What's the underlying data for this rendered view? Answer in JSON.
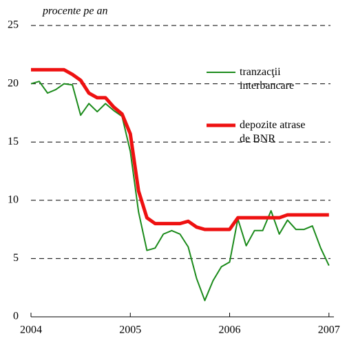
{
  "chart_data": {
    "type": "line",
    "y_axis_label": "procente pe an",
    "x": [
      2004.0,
      2004.083,
      2004.167,
      2004.25,
      2004.333,
      2004.417,
      2004.5,
      2004.583,
      2004.667,
      2004.75,
      2004.833,
      2004.917,
      2005.0,
      2005.083,
      2005.167,
      2005.25,
      2005.333,
      2005.417,
      2005.5,
      2005.583,
      2005.667,
      2005.75,
      2005.833,
      2005.917,
      2006.0,
      2006.083,
      2006.167,
      2006.25,
      2006.333,
      2006.417,
      2006.5,
      2006.583,
      2006.667,
      2006.75,
      2006.833,
      2006.917,
      2007.0
    ],
    "series": [
      {
        "name": "tranzacţii interbancare",
        "color": "#1a8a1a",
        "width": 2,
        "values": [
          20.0,
          20.2,
          19.2,
          19.5,
          20.0,
          19.9,
          17.3,
          18.3,
          17.6,
          18.3,
          17.7,
          17.2,
          14.2,
          9.0,
          5.7,
          5.9,
          7.1,
          7.4,
          7.1,
          6.0,
          3.3,
          1.4,
          3.1,
          4.3,
          4.7,
          8.4,
          6.1,
          7.4,
          7.4,
          9.1,
          7.1,
          8.3,
          7.5,
          7.5,
          7.8,
          5.9,
          4.4
        ]
      },
      {
        "name": "depozite atrase de BNR",
        "color": "#ee1111",
        "width": 5,
        "values": [
          21.2,
          21.2,
          21.2,
          21.2,
          21.2,
          20.8,
          20.3,
          19.2,
          18.8,
          18.8,
          18.0,
          17.4,
          15.7,
          10.8,
          8.5,
          8.0,
          8.0,
          8.0,
          8.0,
          8.2,
          7.7,
          7.5,
          7.5,
          7.5,
          7.5,
          8.5,
          8.5,
          8.5,
          8.5,
          8.5,
          8.5,
          8.75,
          8.75,
          8.75,
          8.75,
          8.75,
          8.75
        ]
      }
    ],
    "xlim": [
      2004,
      2007.05
    ],
    "xticks": [
      2004,
      2005,
      2006,
      2007
    ],
    "ylim": [
      0,
      25
    ],
    "yticks": [
      0,
      5,
      10,
      15,
      20,
      25
    ],
    "grid": true
  }
}
